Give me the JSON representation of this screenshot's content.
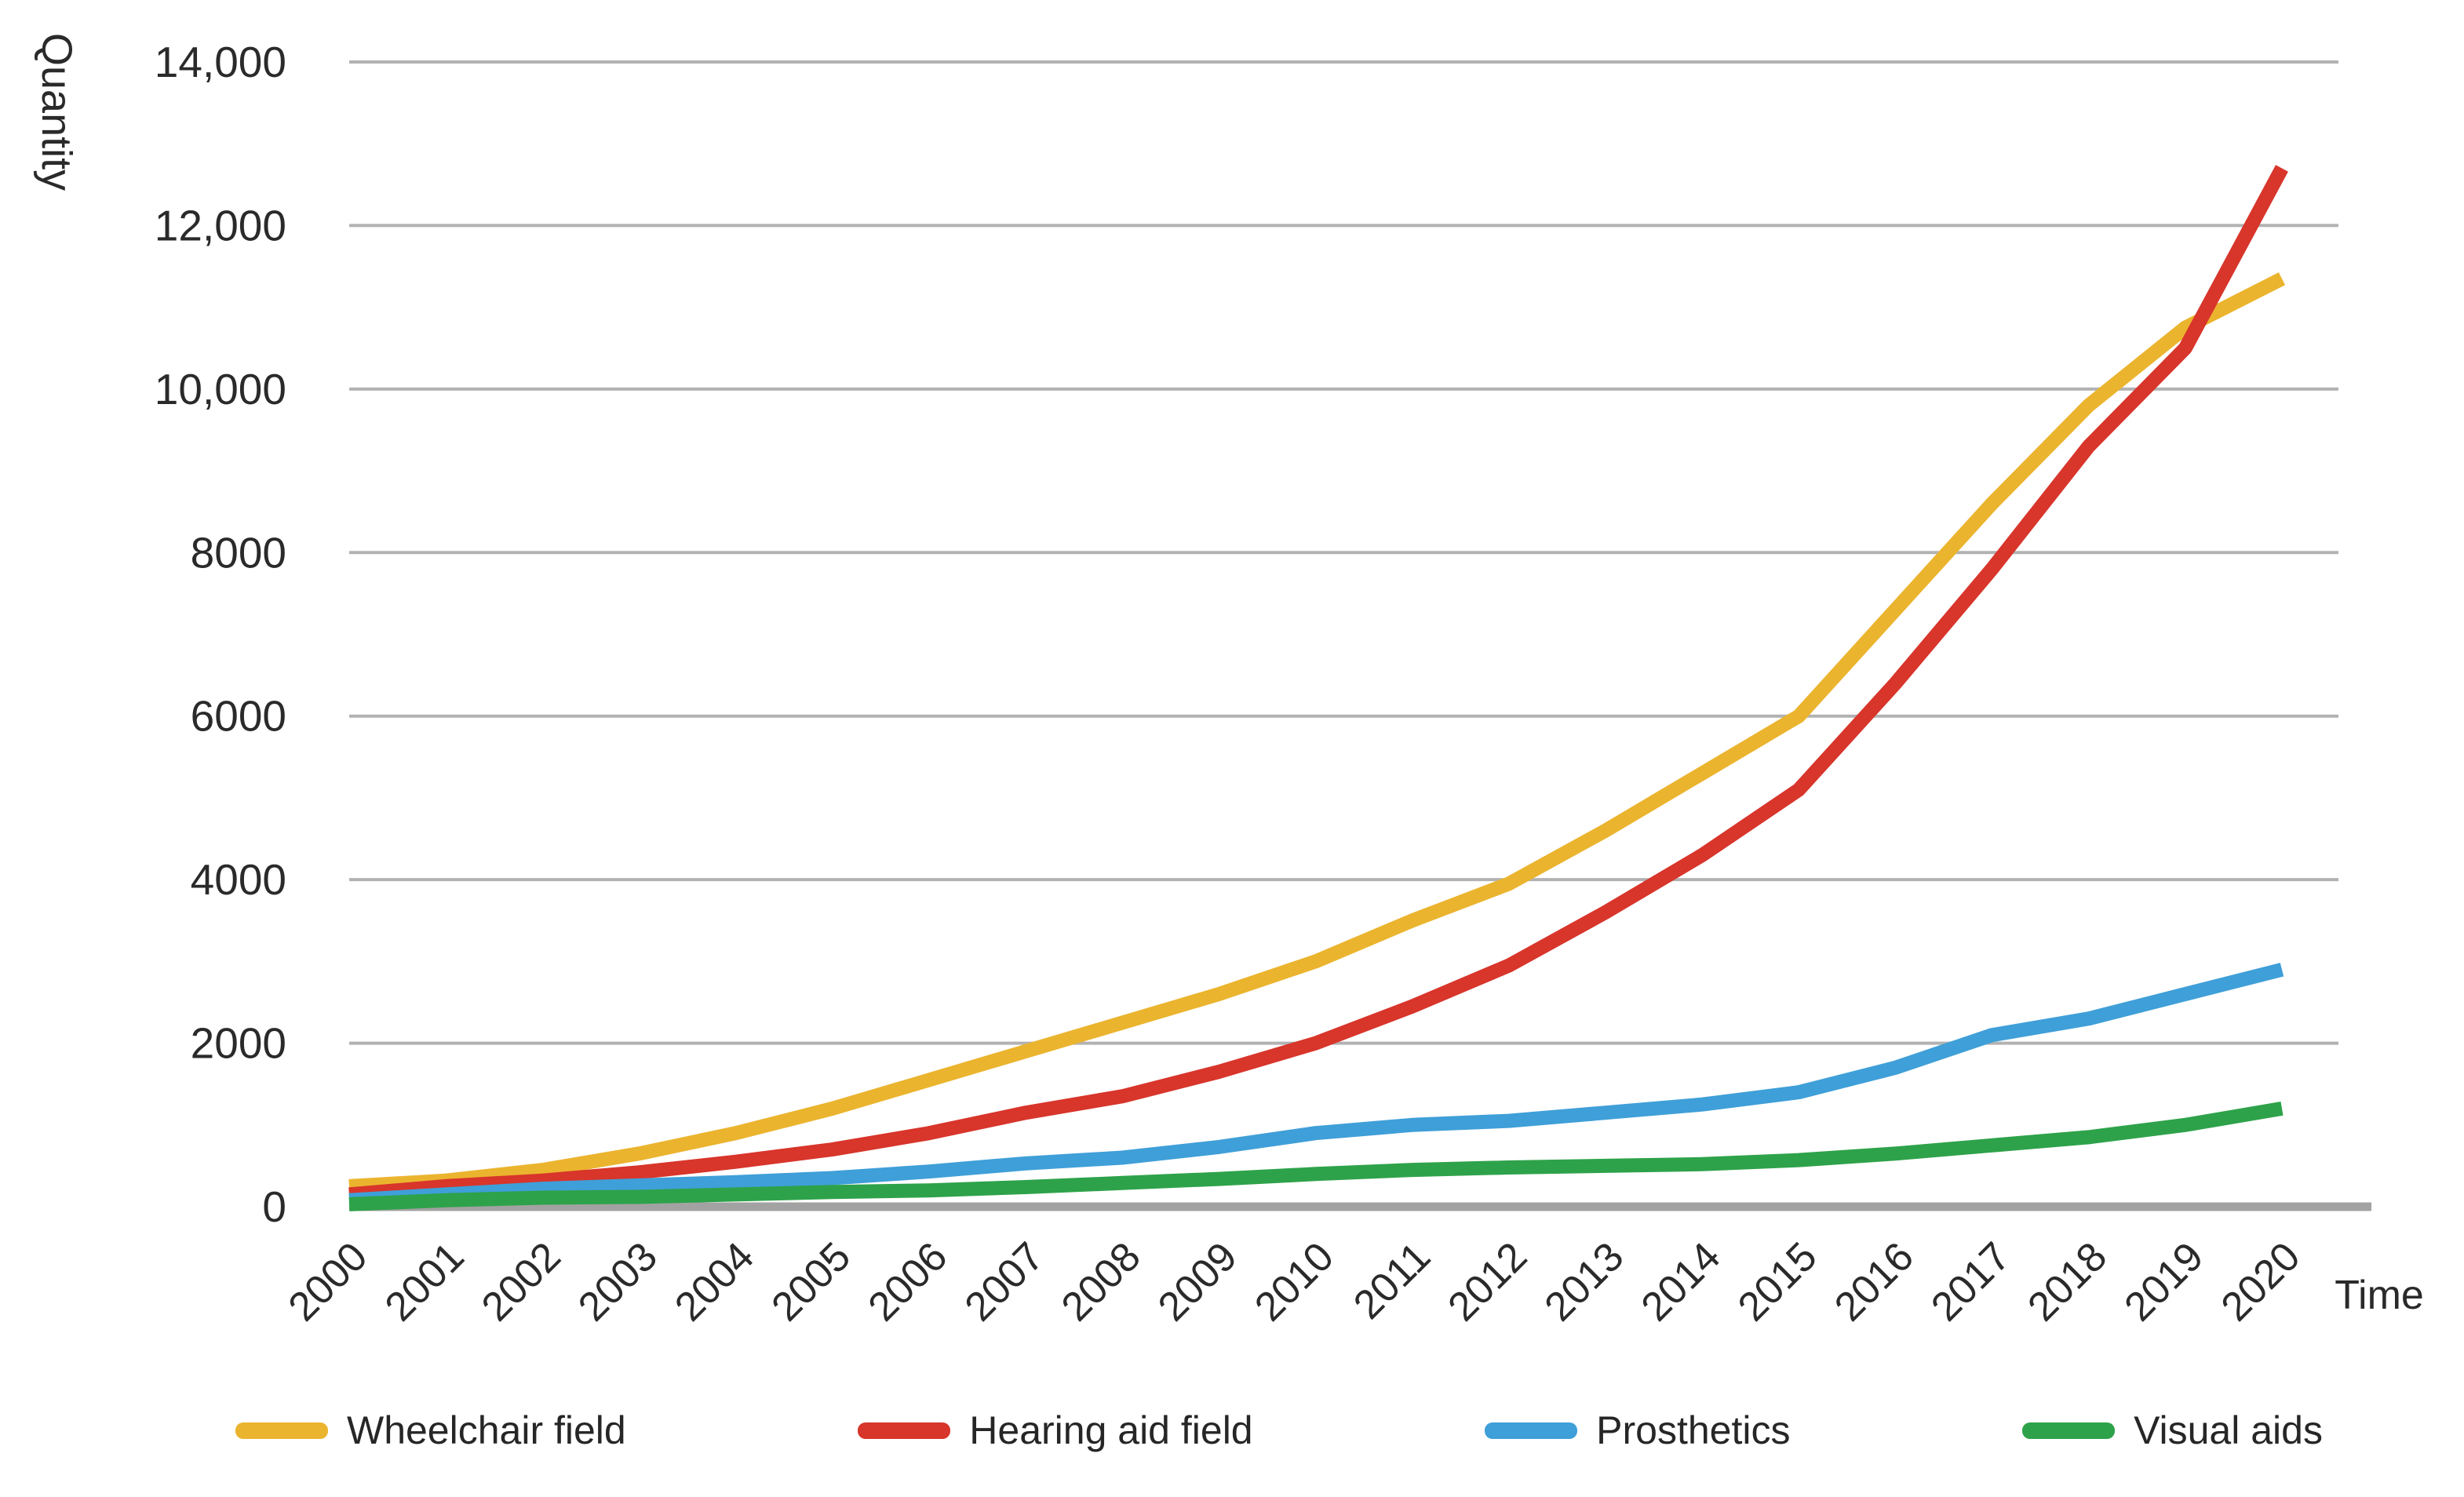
{
  "chart_data": {
    "type": "line",
    "title": "",
    "xlabel": "Time",
    "ylabel": "Quantity",
    "ylim": [
      0,
      14000
    ],
    "grid": "horizontal",
    "legend_position": "bottom",
    "y_ticks": [
      "0",
      "2000",
      "4000",
      "6000",
      "8000",
      "10,000",
      "12,000",
      "14,000"
    ],
    "y_tick_values": [
      0,
      2000,
      4000,
      6000,
      8000,
      10000,
      12000,
      14000
    ],
    "x_ticks": [
      "2000",
      "2001",
      "2002",
      "2003",
      "2004",
      "2005",
      "2006",
      "2007",
      "2008",
      "2009",
      "2010",
      "2011",
      "2012",
      "2013",
      "2014",
      "2015",
      "2016",
      "2017",
      "2018",
      "2019",
      "2020"
    ],
    "categories": [
      2000,
      2001,
      2002,
      2003,
      2004,
      2005,
      2006,
      2007,
      2008,
      2009,
      2010,
      2011,
      2012,
      2013,
      2014,
      2015,
      2016,
      2017,
      2018,
      2019,
      2020
    ],
    "series": [
      {
        "name": "Wheelchair field",
        "color": "#EBB42E",
        "values": [
          250,
          320,
          450,
          650,
          900,
          1200,
          1550,
          1900,
          2250,
          2600,
          3000,
          3500,
          3950,
          4600,
          5300,
          6000,
          7300,
          8600,
          9800,
          10750,
          11350
        ]
      },
      {
        "name": "Hearing aid field",
        "color": "#D8352B",
        "values": [
          150,
          250,
          320,
          420,
          550,
          700,
          900,
          1150,
          1350,
          1650,
          2000,
          2450,
          2950,
          3600,
          4300,
          5100,
          6400,
          7800,
          9300,
          10500,
          12700
        ]
      },
      {
        "name": "Prosthetics",
        "color": "#3F9FD8",
        "values": [
          80,
          150,
          220,
          260,
          300,
          350,
          430,
          530,
          600,
          730,
          900,
          1000,
          1050,
          1150,
          1250,
          1400,
          1700,
          2100,
          2300,
          2600,
          2900
        ]
      },
      {
        "name": "Visual aids",
        "color": "#2EA24A",
        "values": [
          30,
          80,
          110,
          120,
          150,
          180,
          200,
          240,
          290,
          340,
          400,
          450,
          480,
          500,
          520,
          570,
          650,
          750,
          850,
          1000,
          1200
        ]
      }
    ],
    "colors": {
      "gridline": "#b2b2b2",
      "baseline": "#a2a2a2",
      "text": "#2a2a2a",
      "background": "#ffffff"
    }
  }
}
